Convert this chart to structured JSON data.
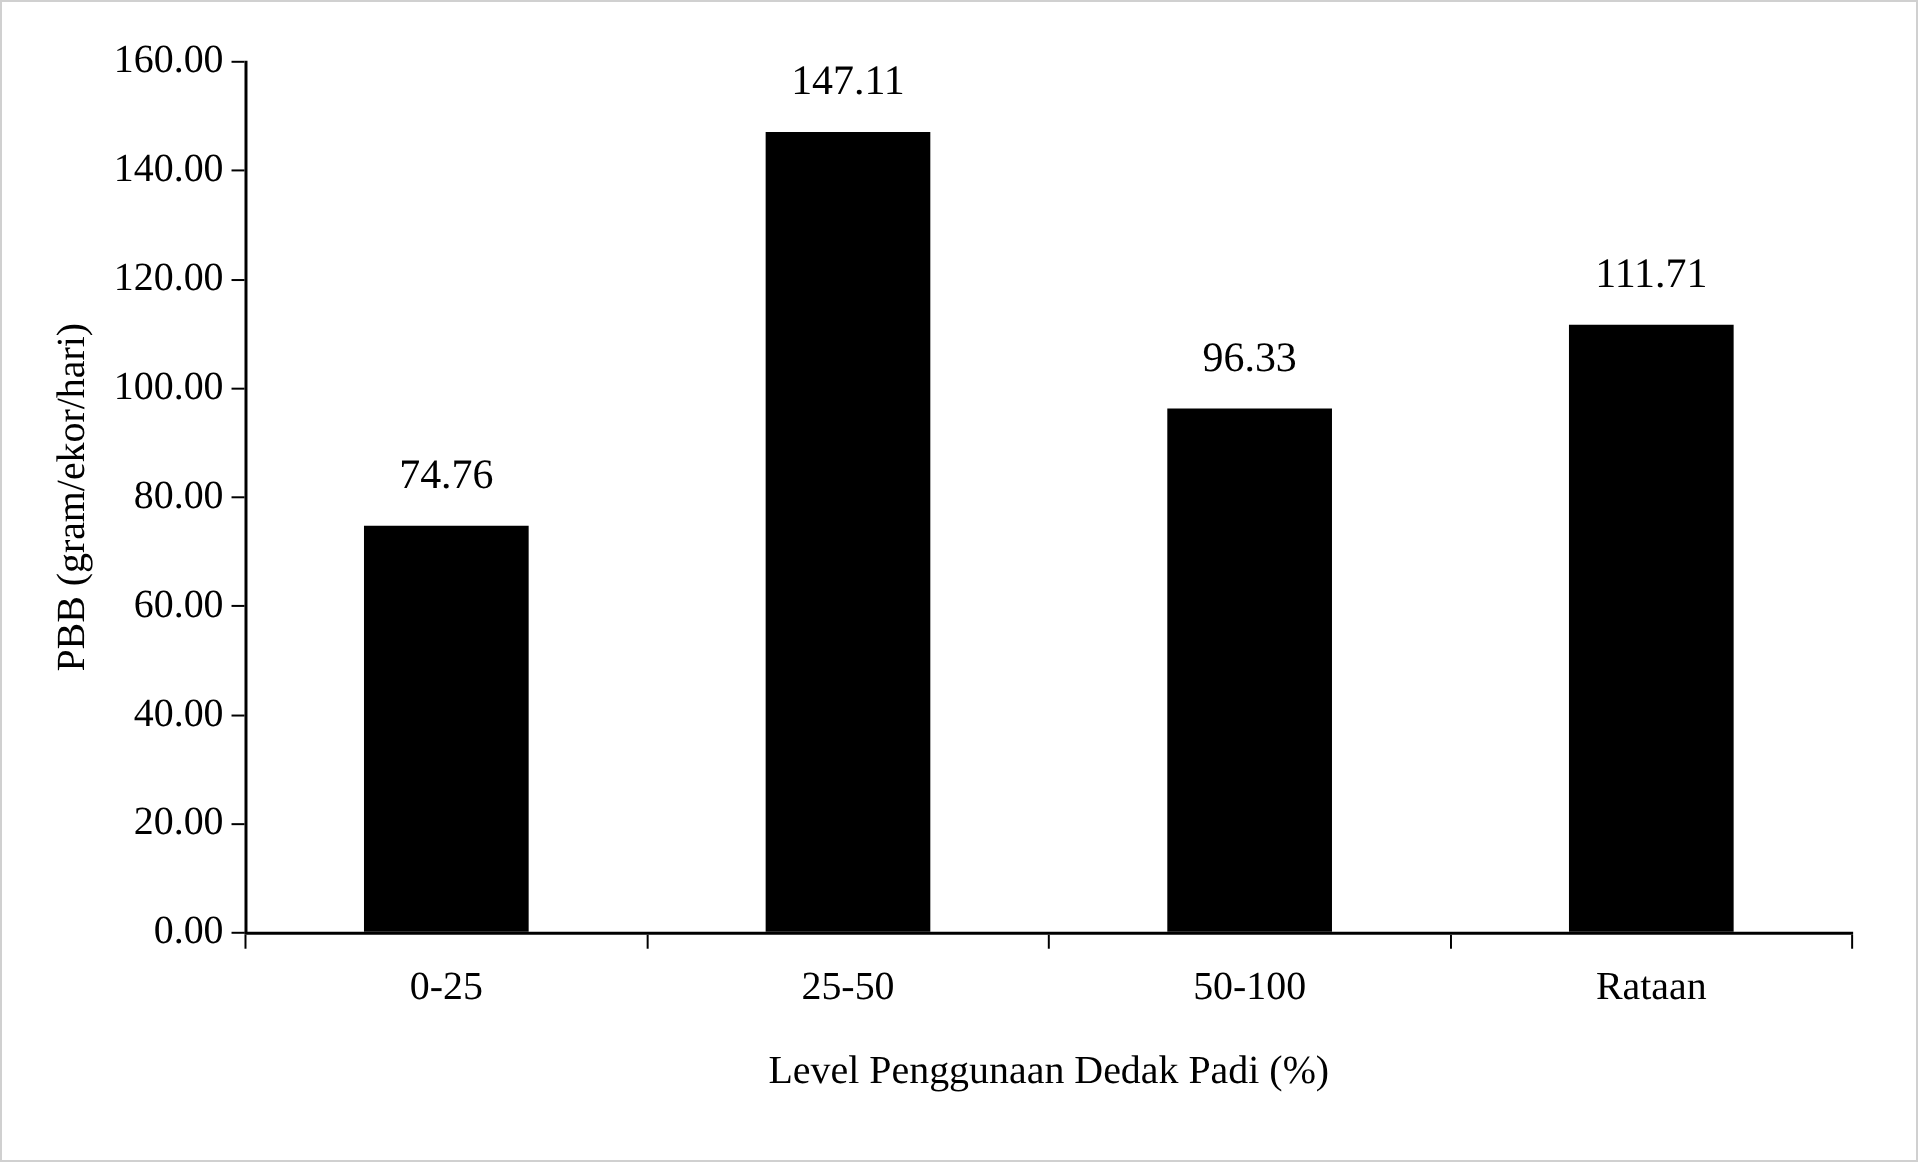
{
  "chart_data": {
    "type": "bar",
    "xlabel": "Level Penggunaan Dedak Padi (%)",
    "ylabel": "PBB (gram/ekor/hari)",
    "categories": [
      "0-25",
      "25-50",
      "50-100",
      "Rataan"
    ],
    "values": [
      74.76,
      147.11,
      96.33,
      111.71
    ],
    "color": "#000000",
    "ylim": [
      0,
      160
    ],
    "yticks": [
      {
        "value": 0,
        "label": "0.00"
      },
      {
        "value": 20,
        "label": "20.00"
      },
      {
        "value": 40,
        "label": "40.00"
      },
      {
        "value": 60,
        "label": "60.00"
      },
      {
        "value": 80,
        "label": "80.00"
      },
      {
        "value": 100,
        "label": "100.00"
      },
      {
        "value": 120,
        "label": "120.00"
      },
      {
        "value": 140,
        "label": "140.00"
      },
      {
        "value": 160,
        "label": "160.00"
      }
    ],
    "grid": false,
    "legend": false,
    "data_labels": true
  }
}
